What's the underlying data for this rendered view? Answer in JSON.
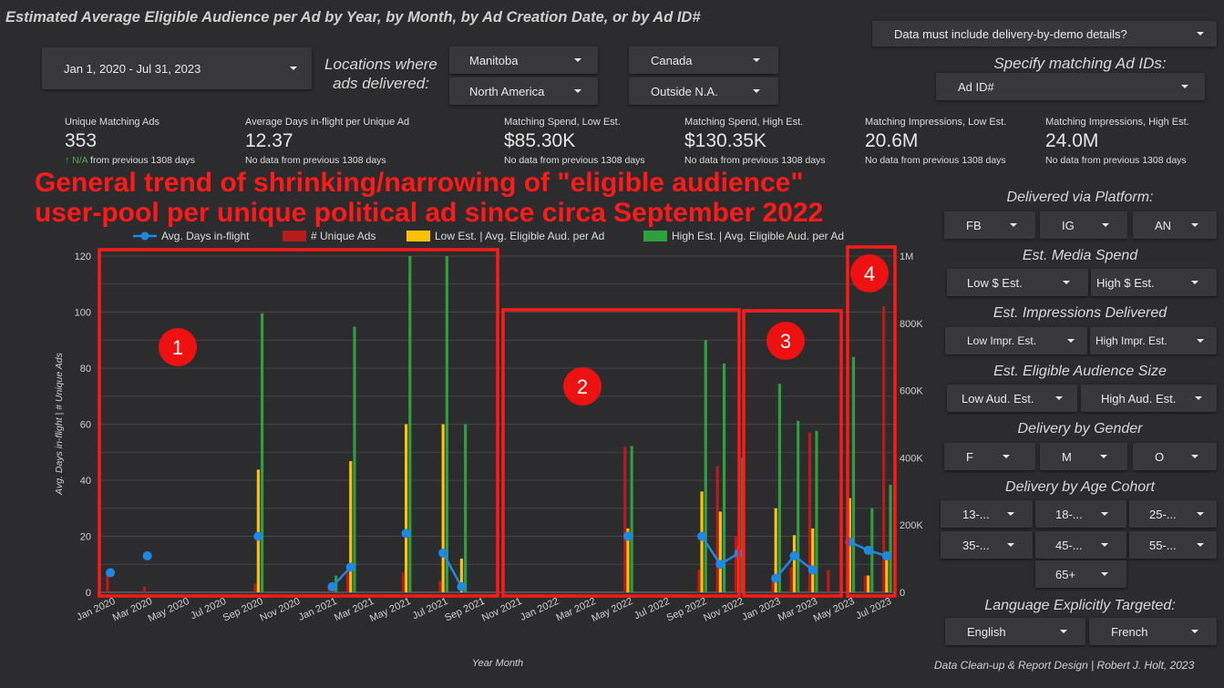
{
  "header": {
    "title": "Estimated Average Eligible Audience per Ad by Year, by Month, by Ad Creation Date, or by Ad ID#",
    "demo_details": "Data must include delivery-by-demo details?"
  },
  "filters": {
    "date_range": "Jan 1, 2020 - Jul 31, 2023",
    "locations_label": "Locations where ads delivered:",
    "loc1": "Manitoba",
    "loc2": "North America",
    "loc3": "Canada",
    "loc4": "Outside N.A.",
    "ad_ids_label": "Specify matching Ad IDs:",
    "ad_id": "Ad ID#"
  },
  "kpis": [
    {
      "label": "Unique Matching Ads",
      "value": "353",
      "badge": "N/A",
      "sub": " from previous 1308 days"
    },
    {
      "label": "Average Days in-flight per Unique Ad",
      "value": "12.37",
      "sub": "No data from previous 1308 days"
    },
    {
      "label": "Matching Spend, Low Est.",
      "value": "$85.30K",
      "sub": "No data from previous 1308 days"
    },
    {
      "label": "Matching Spend, High Est.",
      "value": "$130.35K",
      "sub": "No data from previous 1308 days"
    },
    {
      "label": "Matching Impressions, Low Est.",
      "value": "20.6M",
      "sub": "No data from previous 1308 days"
    },
    {
      "label": "Matching Impressions, High Est.",
      "value": "24.0M",
      "sub": "No data from previous 1308 days"
    }
  ],
  "annotation": {
    "line1": "General trend of shrinking/narrowing of \"eligible audience\"",
    "line2": "user-pool per unique political ad since circa September 2022",
    "markers": [
      "1",
      "2",
      "3",
      "4"
    ]
  },
  "side": {
    "platform_title": "Delivered via Platform:",
    "platform": [
      "FB",
      "IG",
      "AN"
    ],
    "spend_title": "Est. Media Spend",
    "spend": [
      "Low $ Est.",
      "High $ Est."
    ],
    "impr_title": "Est. Impressions Delivered",
    "impr": [
      "Low Impr. Est.",
      "High Impr. Est."
    ],
    "aud_title": "Est. Eligible Audience Size",
    "aud": [
      "Low Aud. Est.",
      "High Aud. Est."
    ],
    "gender_title": "Delivery by Gender",
    "gender": [
      "F",
      "M",
      "O"
    ],
    "age_title": "Delivery by Age Cohort",
    "age": [
      "13-...",
      "18-...",
      "25-...",
      "35-...",
      "45-...",
      "55-...",
      "65+"
    ],
    "lang_title": "Language Explicitly Targeted:",
    "lang": [
      "English",
      "French"
    ]
  },
  "footer": {
    "credit": "Data Clean-up & Report Design | Robert J. Holt, 2023"
  },
  "colors": {
    "line": "#1e88e5",
    "unique_ads": "#b71c1c",
    "low_est": "#ffc107",
    "high_est": "#2e9e3f",
    "annotation": "#ff1a1a"
  },
  "chart_data": {
    "type": "bar",
    "xlabel": "Year Month",
    "ylabel": "Avg. Days in-flight | # Unique Ads",
    "ylim": [
      0,
      120
    ],
    "y_ticks": [
      "0",
      "20",
      "40",
      "60",
      "80",
      "100",
      "120"
    ],
    "y2lim": [
      0,
      1000000
    ],
    "y2_ticks": [
      "0",
      "200K",
      "400K",
      "600K",
      "800K",
      "1M"
    ],
    "grid": true,
    "legend": "top",
    "x_tick_labels": [
      "Jan 2020",
      "Mar 2020",
      "May 2020",
      "Jul 2020",
      "Sep 2020",
      "Nov 2020",
      "Jan 2021",
      "Mar 2021",
      "May 2021",
      "Jul 2021",
      "Sep 2021",
      "Nov 2021",
      "Jan 2022",
      "Mar 2022",
      "May 2022",
      "Jul 2022",
      "Sep 2022",
      "Nov 2022",
      "Jan 2023",
      "Mar 2023",
      "May 2023",
      "Jul 2023"
    ],
    "categories": [
      "Jan 2020",
      "Feb 2020",
      "Mar 2020",
      "Apr 2020",
      "May 2020",
      "Jun 2020",
      "Jul 2020",
      "Aug 2020",
      "Sep 2020",
      "Oct 2020",
      "Nov 2020",
      "Dec 2020",
      "Jan 2021",
      "Feb 2021",
      "Mar 2021",
      "Apr 2021",
      "May 2021",
      "Jun 2021",
      "Jul 2021",
      "Aug 2021",
      "Sep 2021",
      "Oct 2021",
      "Nov 2021",
      "Dec 2021",
      "Jan 2022",
      "Feb 2022",
      "Mar 2022",
      "Apr 2022",
      "May 2022",
      "Jun 2022",
      "Jul 2022",
      "Aug 2022",
      "Sep 2022",
      "Oct 2022",
      "Nov 2022",
      "Dec 2022",
      "Jan 2023",
      "Feb 2023",
      "Mar 2023",
      "Apr 2023",
      "May 2023",
      "Jun 2023",
      "Jul 2023"
    ],
    "series": [
      {
        "name": "# Unique Ads",
        "axis": "left",
        "values": [
          8,
          null,
          2,
          null,
          null,
          null,
          null,
          null,
          3,
          null,
          null,
          null,
          2,
          8,
          null,
          null,
          7,
          null,
          4,
          null,
          null,
          null,
          null,
          null,
          null,
          null,
          null,
          null,
          52,
          null,
          null,
          null,
          8,
          45,
          20,
          null,
          6,
          9,
          57,
          8,
          null,
          6,
          102
        ]
      },
      {
        "name": "Low Est. | Avg. Eligible Aud. per Ad",
        "axis": "right",
        "values": [
          null,
          null,
          null,
          null,
          null,
          null,
          null,
          null,
          365000,
          null,
          null,
          null,
          null,
          390000,
          null,
          null,
          500000,
          null,
          500000,
          100000,
          null,
          null,
          null,
          null,
          null,
          null,
          null,
          null,
          190000,
          null,
          null,
          null,
          300000,
          240000,
          140000,
          null,
          250000,
          170000,
          190000,
          null,
          280000,
          50000,
          100000
        ]
      },
      {
        "name": "High Est. | Avg. Eligible Aud. per Ad",
        "axis": "right",
        "values": [
          null,
          null,
          null,
          null,
          null,
          null,
          null,
          null,
          830000,
          null,
          null,
          null,
          50000,
          790000,
          null,
          null,
          1000000,
          null,
          1000000,
          500000,
          null,
          null,
          null,
          null,
          null,
          null,
          null,
          null,
          435000,
          null,
          null,
          null,
          750000,
          680000,
          400000,
          null,
          620000,
          510000,
          480000,
          null,
          700000,
          250000,
          320000
        ]
      },
      {
        "name": "Avg. Days in-flight",
        "axis": "left",
        "type": "line",
        "values": [
          7,
          null,
          13,
          null,
          null,
          null,
          null,
          null,
          20,
          null,
          null,
          null,
          2,
          9,
          null,
          null,
          21,
          null,
          14,
          2,
          null,
          null,
          null,
          null,
          null,
          null,
          null,
          null,
          20,
          null,
          null,
          null,
          20,
          10,
          14,
          null,
          5,
          13,
          8,
          null,
          18,
          15,
          13
        ]
      }
    ]
  }
}
